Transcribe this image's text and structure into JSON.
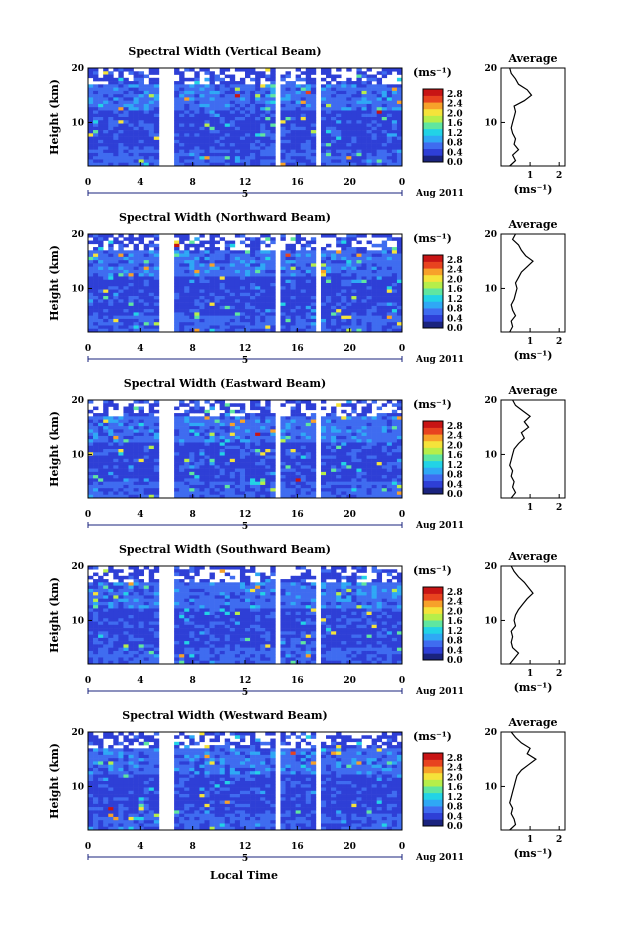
{
  "figure": {
    "xlabel_bottom": "Local Time",
    "panel_ylabel": "Height (km)",
    "date_label": "Aug 2011",
    "date_axis_tick": "5",
    "profile_title": "Average",
    "profile_xlabel": "(ms⁻¹)",
    "colorbar_unit": "(ms⁻¹)"
  },
  "colors": {
    "scale": [
      "#1a237e",
      "#2e3fd6",
      "#3f6cf0",
      "#2fa8f5",
      "#22d3e6",
      "#5fe6a0",
      "#b6ee4a",
      "#f5e33a",
      "#f7a12a",
      "#e8431f",
      "#c81414"
    ],
    "gap": "#ffffff",
    "line": "#000000",
    "date_axis": "#1a237e"
  },
  "chart_data": [
    {
      "type": "heatmap",
      "title": "Spectral Width (Vertical Beam)",
      "xlabel": "Local Time",
      "ylabel": "Height (km)",
      "x_ticks": [
        "0",
        "4",
        "8",
        "12",
        "16",
        "20",
        "0"
      ],
      "xlim": [
        0,
        24
      ],
      "y_ticks": [
        "10",
        "20"
      ],
      "ylim": [
        2,
        20
      ],
      "colorbar": {
        "label": "(ms⁻¹)",
        "ticks": [
          "0.0",
          "0.4",
          "0.8",
          "1.2",
          "1.6",
          "2.0",
          "2.4",
          "2.8"
        ],
        "range": [
          0,
          3.0
        ]
      },
      "data_gaps_hours": [
        [
          5.6,
          6.5
        ],
        [
          9.9,
          10.2
        ],
        [
          14.5,
          14.9
        ],
        [
          17.5,
          17.8
        ],
        [
          22.4,
          22.6
        ]
      ],
      "profile": {
        "title": "Average",
        "xlabel": "(ms⁻¹)",
        "x_ticks": [
          "1",
          "2"
        ],
        "xlim": [
          0,
          2.2
        ],
        "y_ticks": [
          "10",
          "20"
        ],
        "ylim": [
          2,
          20
        ],
        "heights_km": [
          2,
          3,
          4,
          5,
          6,
          7,
          8,
          9,
          10,
          11,
          12,
          13,
          14,
          15,
          16,
          17,
          18,
          19,
          20
        ],
        "values_ms": [
          0.3,
          0.5,
          0.4,
          0.6,
          0.45,
          0.5,
          0.4,
          0.35,
          0.4,
          0.45,
          0.5,
          0.45,
          0.8,
          1.05,
          0.9,
          0.6,
          0.5,
          0.35,
          0.3
        ]
      }
    },
    {
      "type": "heatmap",
      "title": "Spectral Width (Northward Beam)",
      "xlabel": "Local Time",
      "ylabel": "Height (km)",
      "x_ticks": [
        "0",
        "4",
        "8",
        "12",
        "16",
        "20",
        "0"
      ],
      "xlim": [
        0,
        24
      ],
      "y_ticks": [
        "10",
        "20"
      ],
      "ylim": [
        2,
        20
      ],
      "colorbar": {
        "label": "(ms⁻¹)",
        "ticks": [
          "0.0",
          "0.4",
          "0.8",
          "1.2",
          "1.6",
          "2.0",
          "2.4",
          "2.8"
        ],
        "range": [
          0,
          3.0
        ]
      },
      "data_gaps_hours": [
        [
          5.6,
          6.5
        ],
        [
          9.9,
          10.2
        ],
        [
          14.5,
          14.9
        ],
        [
          17.5,
          17.8
        ],
        [
          22.4,
          22.6
        ]
      ],
      "profile": {
        "title": "Average",
        "xlabel": "(ms⁻¹)",
        "x_ticks": [
          "1",
          "2"
        ],
        "xlim": [
          0,
          2.2
        ],
        "y_ticks": [
          "10",
          "20"
        ],
        "ylim": [
          2,
          20
        ],
        "heights_km": [
          2,
          3,
          4,
          5,
          6,
          7,
          8,
          9,
          10,
          11,
          12,
          13,
          14,
          15,
          16,
          17,
          18,
          19,
          20
        ],
        "values_ms": [
          0.3,
          0.4,
          0.35,
          0.5,
          0.4,
          0.35,
          0.45,
          0.5,
          0.55,
          0.5,
          0.6,
          0.7,
          0.9,
          1.1,
          0.85,
          0.7,
          0.6,
          0.4,
          0.5
        ]
      }
    },
    {
      "type": "heatmap",
      "title": "Spectral Width (Eastward Beam)",
      "xlabel": "Local Time",
      "ylabel": "Height (km)",
      "x_ticks": [
        "0",
        "4",
        "8",
        "12",
        "16",
        "20",
        "0"
      ],
      "xlim": [
        0,
        24
      ],
      "y_ticks": [
        "10",
        "20"
      ],
      "ylim": [
        2,
        20
      ],
      "colorbar": {
        "label": "(ms⁻¹)",
        "ticks": [
          "0.0",
          "0.4",
          "0.8",
          "1.2",
          "1.6",
          "2.0",
          "2.4",
          "2.8"
        ],
        "range": [
          0,
          3.0
        ]
      },
      "data_gaps_hours": [
        [
          5.6,
          6.5
        ],
        [
          9.9,
          10.2
        ],
        [
          14.5,
          14.9
        ],
        [
          17.5,
          17.8
        ],
        [
          22.4,
          22.6
        ]
      ],
      "profile": {
        "title": "Average",
        "xlabel": "",
        "x_ticks": [
          "1",
          "2"
        ],
        "xlim": [
          0,
          2.2
        ],
        "y_ticks": [
          "10",
          "20"
        ],
        "ylim": [
          2,
          20
        ],
        "heights_km": [
          2,
          3,
          4,
          5,
          6,
          7,
          8,
          9,
          10,
          11,
          12,
          13,
          14,
          15,
          16,
          17,
          18,
          19,
          20
        ],
        "values_ms": [
          0.35,
          0.5,
          0.4,
          0.45,
          0.35,
          0.4,
          0.3,
          0.35,
          0.4,
          0.45,
          0.6,
          0.8,
          0.7,
          0.95,
          0.8,
          1.0,
          0.75,
          0.5,
          0.4
        ]
      }
    },
    {
      "type": "heatmap",
      "title": "Spectral Width (Southward Beam)",
      "xlabel": "Local Time",
      "ylabel": "Height (km)",
      "x_ticks": [
        "0",
        "4",
        "8",
        "12",
        "16",
        "20",
        "0"
      ],
      "xlim": [
        0,
        24
      ],
      "y_ticks": [
        "10",
        "20"
      ],
      "ylim": [
        2,
        20
      ],
      "colorbar": {
        "label": "(ms⁻¹)",
        "ticks": [
          "0.0",
          "0.4",
          "0.8",
          "1.2",
          "1.6",
          "2.0",
          "2.4",
          "2.8"
        ],
        "range": [
          0,
          3.0
        ]
      },
      "data_gaps_hours": [
        [
          5.6,
          6.5
        ],
        [
          9.9,
          10.2
        ],
        [
          14.5,
          14.9
        ],
        [
          17.5,
          17.8
        ],
        [
          22.4,
          22.6
        ]
      ],
      "profile": {
        "title": "Average",
        "xlabel": "(ms⁻¹)",
        "x_ticks": [
          "1",
          "2"
        ],
        "xlim": [
          0,
          2.2
        ],
        "y_ticks": [
          "10",
          "20"
        ],
        "ylim": [
          2,
          20
        ],
        "heights_km": [
          2,
          3,
          4,
          5,
          6,
          7,
          8,
          9,
          10,
          11,
          12,
          13,
          14,
          15,
          16,
          17,
          18,
          19,
          20
        ],
        "values_ms": [
          0.3,
          0.45,
          0.6,
          0.4,
          0.35,
          0.4,
          0.35,
          0.5,
          0.45,
          0.5,
          0.6,
          0.75,
          0.9,
          1.1,
          0.95,
          0.8,
          0.6,
          0.45,
          0.35
        ]
      }
    },
    {
      "type": "heatmap",
      "title": "Spectral Width (Westward Beam)",
      "xlabel": "Local Time",
      "ylabel": "Height (km)",
      "x_ticks": [
        "0",
        "4",
        "8",
        "12",
        "16",
        "20",
        "0"
      ],
      "xlim": [
        0,
        24
      ],
      "y_ticks": [
        "10",
        "20"
      ],
      "ylim": [
        2,
        20
      ],
      "colorbar": {
        "label": "(ms⁻¹)",
        "ticks": [
          "0.0",
          "0.4",
          "0.8",
          "1.2",
          "1.6",
          "2.0",
          "2.4",
          "2.8"
        ],
        "range": [
          0,
          3.0
        ]
      },
      "data_gaps_hours": [
        [
          5.6,
          6.5
        ],
        [
          9.9,
          10.2
        ],
        [
          14.5,
          14.9
        ],
        [
          17.5,
          17.8
        ],
        [
          22.4,
          22.6
        ]
      ],
      "profile": {
        "title": "Average",
        "xlabel": "(ms⁻¹)",
        "x_ticks": [
          "1",
          "2"
        ],
        "xlim": [
          0,
          2.2
        ],
        "y_ticks": [
          "10",
          "20"
        ],
        "ylim": [
          2,
          20
        ],
        "heights_km": [
          2,
          3,
          4,
          5,
          6,
          7,
          8,
          9,
          10,
          11,
          12,
          13,
          14,
          15,
          16,
          17,
          18,
          19,
          20
        ],
        "values_ms": [
          0.3,
          0.5,
          0.45,
          0.35,
          0.4,
          0.3,
          0.35,
          0.4,
          0.45,
          0.5,
          0.55,
          0.7,
          0.95,
          1.2,
          0.9,
          1.0,
          0.7,
          0.5,
          0.35
        ]
      }
    }
  ]
}
